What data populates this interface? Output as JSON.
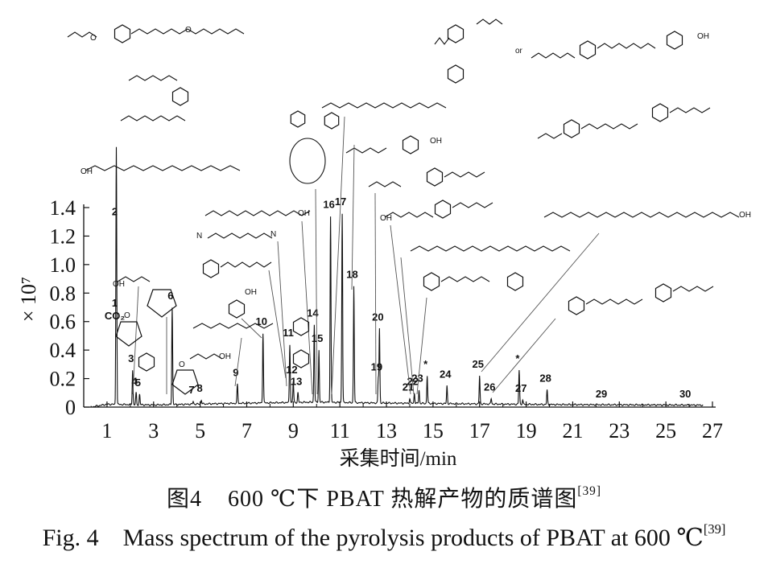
{
  "chart_data": {
    "type": "line",
    "xlabel": "采集时间/min",
    "ylabel": "× 10⁷",
    "xlim": [
      0,
      27
    ],
    "ylim": [
      0,
      1.4
    ],
    "x_ticks": [
      1,
      3,
      5,
      7,
      9,
      11,
      13,
      15,
      17,
      19,
      21,
      23,
      25,
      27
    ],
    "y_ticks": [
      0,
      0.2,
      0.4,
      0.6,
      0.8,
      1.0,
      1.2,
      1.4
    ],
    "y_tick_labels": [
      "0",
      "0.2",
      "0.4",
      "0.6",
      "0.8",
      "1.0",
      "1.2",
      "1.4"
    ],
    "peaks": [
      {
        "label": "1\nCO₂",
        "x": 1.4,
        "y": 0.56
      },
      {
        "label": "2",
        "x": 1.4,
        "y": 1.29
      },
      {
        "label": "3",
        "x": 2.1,
        "y": 0.26
      },
      {
        "label": "4",
        "x": 2.25,
        "y": 0.1
      },
      {
        "label": "5",
        "x": 2.4,
        "y": 0.09
      },
      {
        "label": "6",
        "x": 3.8,
        "y": 0.7
      },
      {
        "label": "7",
        "x": 4.7,
        "y": 0.04
      },
      {
        "label": "8",
        "x": 5.05,
        "y": 0.05
      },
      {
        "label": "9",
        "x": 6.6,
        "y": 0.16
      },
      {
        "label": "10",
        "x": 7.7,
        "y": 0.52
      },
      {
        "label": "11",
        "x": 8.85,
        "y": 0.44
      },
      {
        "label": "12",
        "x": 9.0,
        "y": 0.18
      },
      {
        "label": "13",
        "x": 9.2,
        "y": 0.1
      },
      {
        "label": "14",
        "x": 9.9,
        "y": 0.58
      },
      {
        "label": "15",
        "x": 10.1,
        "y": 0.4
      },
      {
        "label": "16",
        "x": 10.6,
        "y": 1.34
      },
      {
        "label": "17",
        "x": 11.1,
        "y": 1.36
      },
      {
        "label": "18",
        "x": 11.6,
        "y": 0.85
      },
      {
        "label": "19",
        "x": 12.65,
        "y": 0.2
      },
      {
        "label": "20",
        "x": 12.7,
        "y": 0.55
      },
      {
        "label": "21",
        "x": 14.0,
        "y": 0.06
      },
      {
        "label": "22",
        "x": 14.2,
        "y": 0.1
      },
      {
        "label": "23",
        "x": 14.4,
        "y": 0.12
      },
      {
        "label": "*",
        "x": 14.75,
        "y": 0.22
      },
      {
        "label": "24",
        "x": 15.6,
        "y": 0.15
      },
      {
        "label": "25",
        "x": 17.0,
        "y": 0.22
      },
      {
        "label": "26",
        "x": 17.5,
        "y": 0.06
      },
      {
        "label": "*",
        "x": 18.7,
        "y": 0.26
      },
      {
        "label": "27",
        "x": 18.85,
        "y": 0.05
      },
      {
        "label": "28",
        "x": 19.9,
        "y": 0.12
      },
      {
        "label": "29",
        "x": 22.3,
        "y": 0.01
      },
      {
        "label": "30",
        "x": 25.9,
        "y": 0.01
      }
    ],
    "baseline": [
      [
        0.3,
        0.0
      ],
      [
        1.0,
        0.02
      ],
      [
        3.0,
        0.015
      ],
      [
        6.0,
        0.025
      ],
      [
        10.0,
        0.035
      ],
      [
        12.0,
        0.03
      ],
      [
        15.0,
        0.025
      ],
      [
        20.0,
        0.018
      ],
      [
        26.5,
        0.014
      ]
    ],
    "structure_texts": [
      "CO₂",
      "O",
      "OH",
      "N",
      "C",
      "O",
      "or"
    ]
  },
  "caption": {
    "zh_prefix": "图",
    "zh_number": "4",
    "zh_text": "600 ℃下 PBAT 热解产物的质谱图",
    "zh_ref": "[39]",
    "en_prefix": "Fig. 4",
    "en_text": "Mass spectrum of the pyrolysis products of PBAT at 600 ℃",
    "en_ref": "[39]"
  }
}
